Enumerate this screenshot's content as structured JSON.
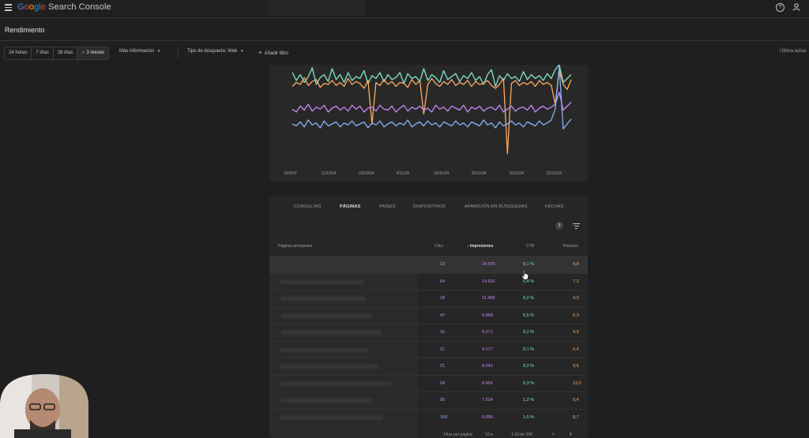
{
  "header": {
    "logo_google": [
      "G",
      "o",
      "o",
      "g",
      "l",
      "e"
    ],
    "logo_product": "Search Console"
  },
  "page_title": "Rendimiento",
  "toolbar": {
    "date_ranges": [
      {
        "label": "24 horas",
        "active": false
      },
      {
        "label": "7 días",
        "active": false
      },
      {
        "label": "28 días",
        "active": false
      },
      {
        "label": "3 meses",
        "active": true
      }
    ],
    "more_label": "Más información",
    "search_type_label": "Tipo de búsqueda: Web",
    "add_filter_label": "Añadir filtro",
    "last_update_label": "Última actua"
  },
  "chart_data": {
    "type": "line",
    "x_ticks": [
      "29/9/24",
      "11/10/24",
      "23/10/24",
      "4/11/24",
      "16/11/24",
      "28/11/24",
      "10/12/24",
      "22/12/24"
    ],
    "series": [
      {
        "color": "#81e6c8",
        "values": [
          92,
          84,
          90,
          82,
          88,
          97,
          80,
          87,
          90,
          83,
          96,
          85,
          90,
          82,
          92,
          84,
          88,
          86,
          94,
          81,
          89,
          86,
          92,
          83,
          90,
          85,
          87,
          92,
          81,
          91,
          86,
          88,
          83,
          96,
          84,
          90,
          87,
          82,
          94,
          85,
          88,
          91,
          83,
          89,
          86,
          92,
          84,
          88,
          80,
          90,
          95,
          78,
          89,
          84,
          91,
          86,
          88,
          83,
          93,
          85,
          90,
          86,
          89,
          84,
          91,
          86,
          95,
          100,
          82,
          86,
          90
        ]
      },
      {
        "color": "#fdaa60",
        "values": [
          78,
          82,
          80,
          87,
          79,
          83,
          85,
          77,
          81,
          80,
          84,
          79,
          82,
          78,
          86,
          80,
          83,
          81,
          76,
          84,
          40,
          82,
          79,
          85,
          80,
          83,
          78,
          82,
          81,
          77,
          85,
          80,
          84,
          50,
          80,
          86,
          81,
          78,
          83,
          80,
          85,
          79,
          82,
          80,
          84,
          78,
          83,
          80,
          81,
          84,
          79,
          76,
          80,
          86,
          10,
          81,
          84,
          79,
          82,
          80,
          83,
          78,
          84,
          80,
          82,
          79,
          60,
          95,
          80,
          75,
          85
        ]
      },
      {
        "color": "#c58af9",
        "values": [
          55,
          52,
          58,
          54,
          60,
          53,
          57,
          55,
          59,
          52,
          56,
          58,
          54,
          57,
          53,
          59,
          55,
          58,
          52,
          56,
          57,
          53,
          59,
          55,
          54,
          58,
          52,
          56,
          59,
          53,
          57,
          55,
          58,
          54,
          56,
          52,
          59,
          55,
          57,
          53,
          58,
          56,
          54,
          59,
          52,
          57,
          55,
          58,
          53,
          56,
          57,
          54,
          59,
          52,
          55,
          58,
          53,
          56,
          57,
          54,
          59,
          52,
          56,
          58,
          55,
          57,
          60,
          72,
          54,
          58,
          62
        ]
      },
      {
        "color": "#8ab4f8",
        "values": [
          40,
          38,
          42,
          37,
          44,
          39,
          41,
          36,
          43,
          38,
          40,
          42,
          37,
          41,
          39,
          43,
          38,
          40,
          42,
          36,
          41,
          39,
          43,
          37,
          40,
          42,
          38,
          41,
          39,
          44,
          37,
          40,
          42,
          38,
          43,
          39,
          41,
          37,
          42,
          40,
          38,
          43,
          39,
          41,
          37,
          42,
          40,
          38,
          44,
          39,
          41,
          36,
          42,
          38,
          40,
          43,
          39,
          41,
          37,
          42,
          40,
          38,
          43,
          39,
          41,
          44,
          55,
          98,
          35,
          40,
          45
        ]
      }
    ]
  },
  "tabs": [
    {
      "label": "CONSULTAS",
      "active": false
    },
    {
      "label": "PÁGINAS",
      "active": true
    },
    {
      "label": "PAÍSES",
      "active": false
    },
    {
      "label": "DISPOSITIVOS",
      "active": false
    },
    {
      "label": "APARICIÓN EN BÚSQUEDAS",
      "active": false
    },
    {
      "label": "FECHAS",
      "active": false
    }
  ],
  "table": {
    "filter_count": "3",
    "headers": {
      "page": "Páginas principales",
      "clics": "Clics",
      "impr": "Impresiones",
      "ctr": "CTR",
      "pos": "Posición"
    },
    "rows": [
      {
        "clics": "13",
        "impr": "24.975",
        "ctr": "0,1 %",
        "pos": "9,8"
      },
      {
        "clics": "64",
        "impr": "14.601",
        "ctr": "0,4 %",
        "pos": "7,2"
      },
      {
        "clics": "18",
        "impr": "11.495",
        "ctr": "0,2 %",
        "pos": "4,3"
      },
      {
        "clics": "47",
        "impr": "9.968",
        "ctr": "0,5 %",
        "pos": "6,3"
      },
      {
        "clics": "16",
        "impr": "9.271",
        "ctr": "0,2 %",
        "pos": "4,9"
      },
      {
        "clics": "11",
        "impr": "9.177",
        "ctr": "0,1 %",
        "pos": "6,4"
      },
      {
        "clics": "21",
        "impr": "8.642",
        "ctr": "0,2 %",
        "pos": "9,6"
      },
      {
        "clics": "24",
        "impr": "8.456",
        "ctr": "0,3 %",
        "pos": "13,0"
      },
      {
        "clics": "95",
        "impr": "7.624",
        "ctr": "1,2 %",
        "pos": "5,4"
      },
      {
        "clics": "100",
        "impr": "6.896",
        "ctr": "1,5 %",
        "pos": "8,7"
      }
    ],
    "rows_per_page_label": "Filas por página:",
    "rows_per_page_value": "10",
    "range_label": "1-10 de 234"
  }
}
